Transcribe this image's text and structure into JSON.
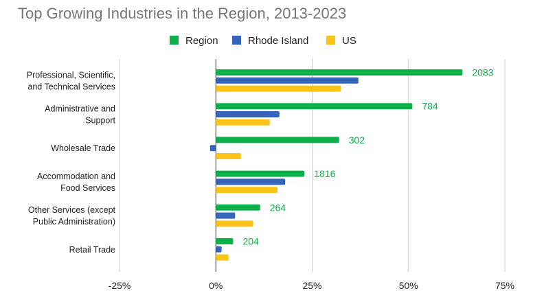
{
  "chart_data": {
    "type": "bar",
    "orientation": "horizontal",
    "title": "Top Growing Industries in the Region, 2013-2023",
    "xlabel": "",
    "ylabel": "",
    "xlim": [
      -0.25,
      0.75
    ],
    "x_ticks": [
      -0.25,
      0,
      0.25,
      0.5,
      0.75
    ],
    "x_tick_labels": [
      "-25%",
      "0%",
      "25%",
      "50%",
      "75%"
    ],
    "grid": true,
    "legend_position": "top-center",
    "categories": [
      [
        "Professional, Scientific,",
        "and Technical Services"
      ],
      [
        "Administrative and",
        "Support"
      ],
      [
        "Wholesale Trade"
      ],
      [
        "Accommodation and",
        "Food Services"
      ],
      [
        "Other Services (except",
        "Public Administration)"
      ],
      [
        "Retail Trade"
      ]
    ],
    "series": [
      {
        "name": "Region",
        "color": "#0db14b",
        "values": [
          0.64,
          0.51,
          0.32,
          0.23,
          0.115,
          0.045
        ]
      },
      {
        "name": "Rhode Island",
        "color": "#3465b8",
        "values": [
          0.37,
          0.165,
          -0.015,
          0.18,
          0.05,
          0.015
        ]
      },
      {
        "name": "US",
        "color": "#fcc419",
        "values": [
          0.325,
          0.14,
          0.065,
          0.16,
          0.097,
          0.033
        ]
      }
    ],
    "data_labels": {
      "series": "Region",
      "color": "#0db14b",
      "values": [
        "2083",
        "784",
        "302",
        "1816",
        "264",
        "204"
      ]
    }
  },
  "colors": {
    "title": "#757575",
    "text": "#222222",
    "grid": "#cccccc",
    "zero_line": "#333333"
  }
}
